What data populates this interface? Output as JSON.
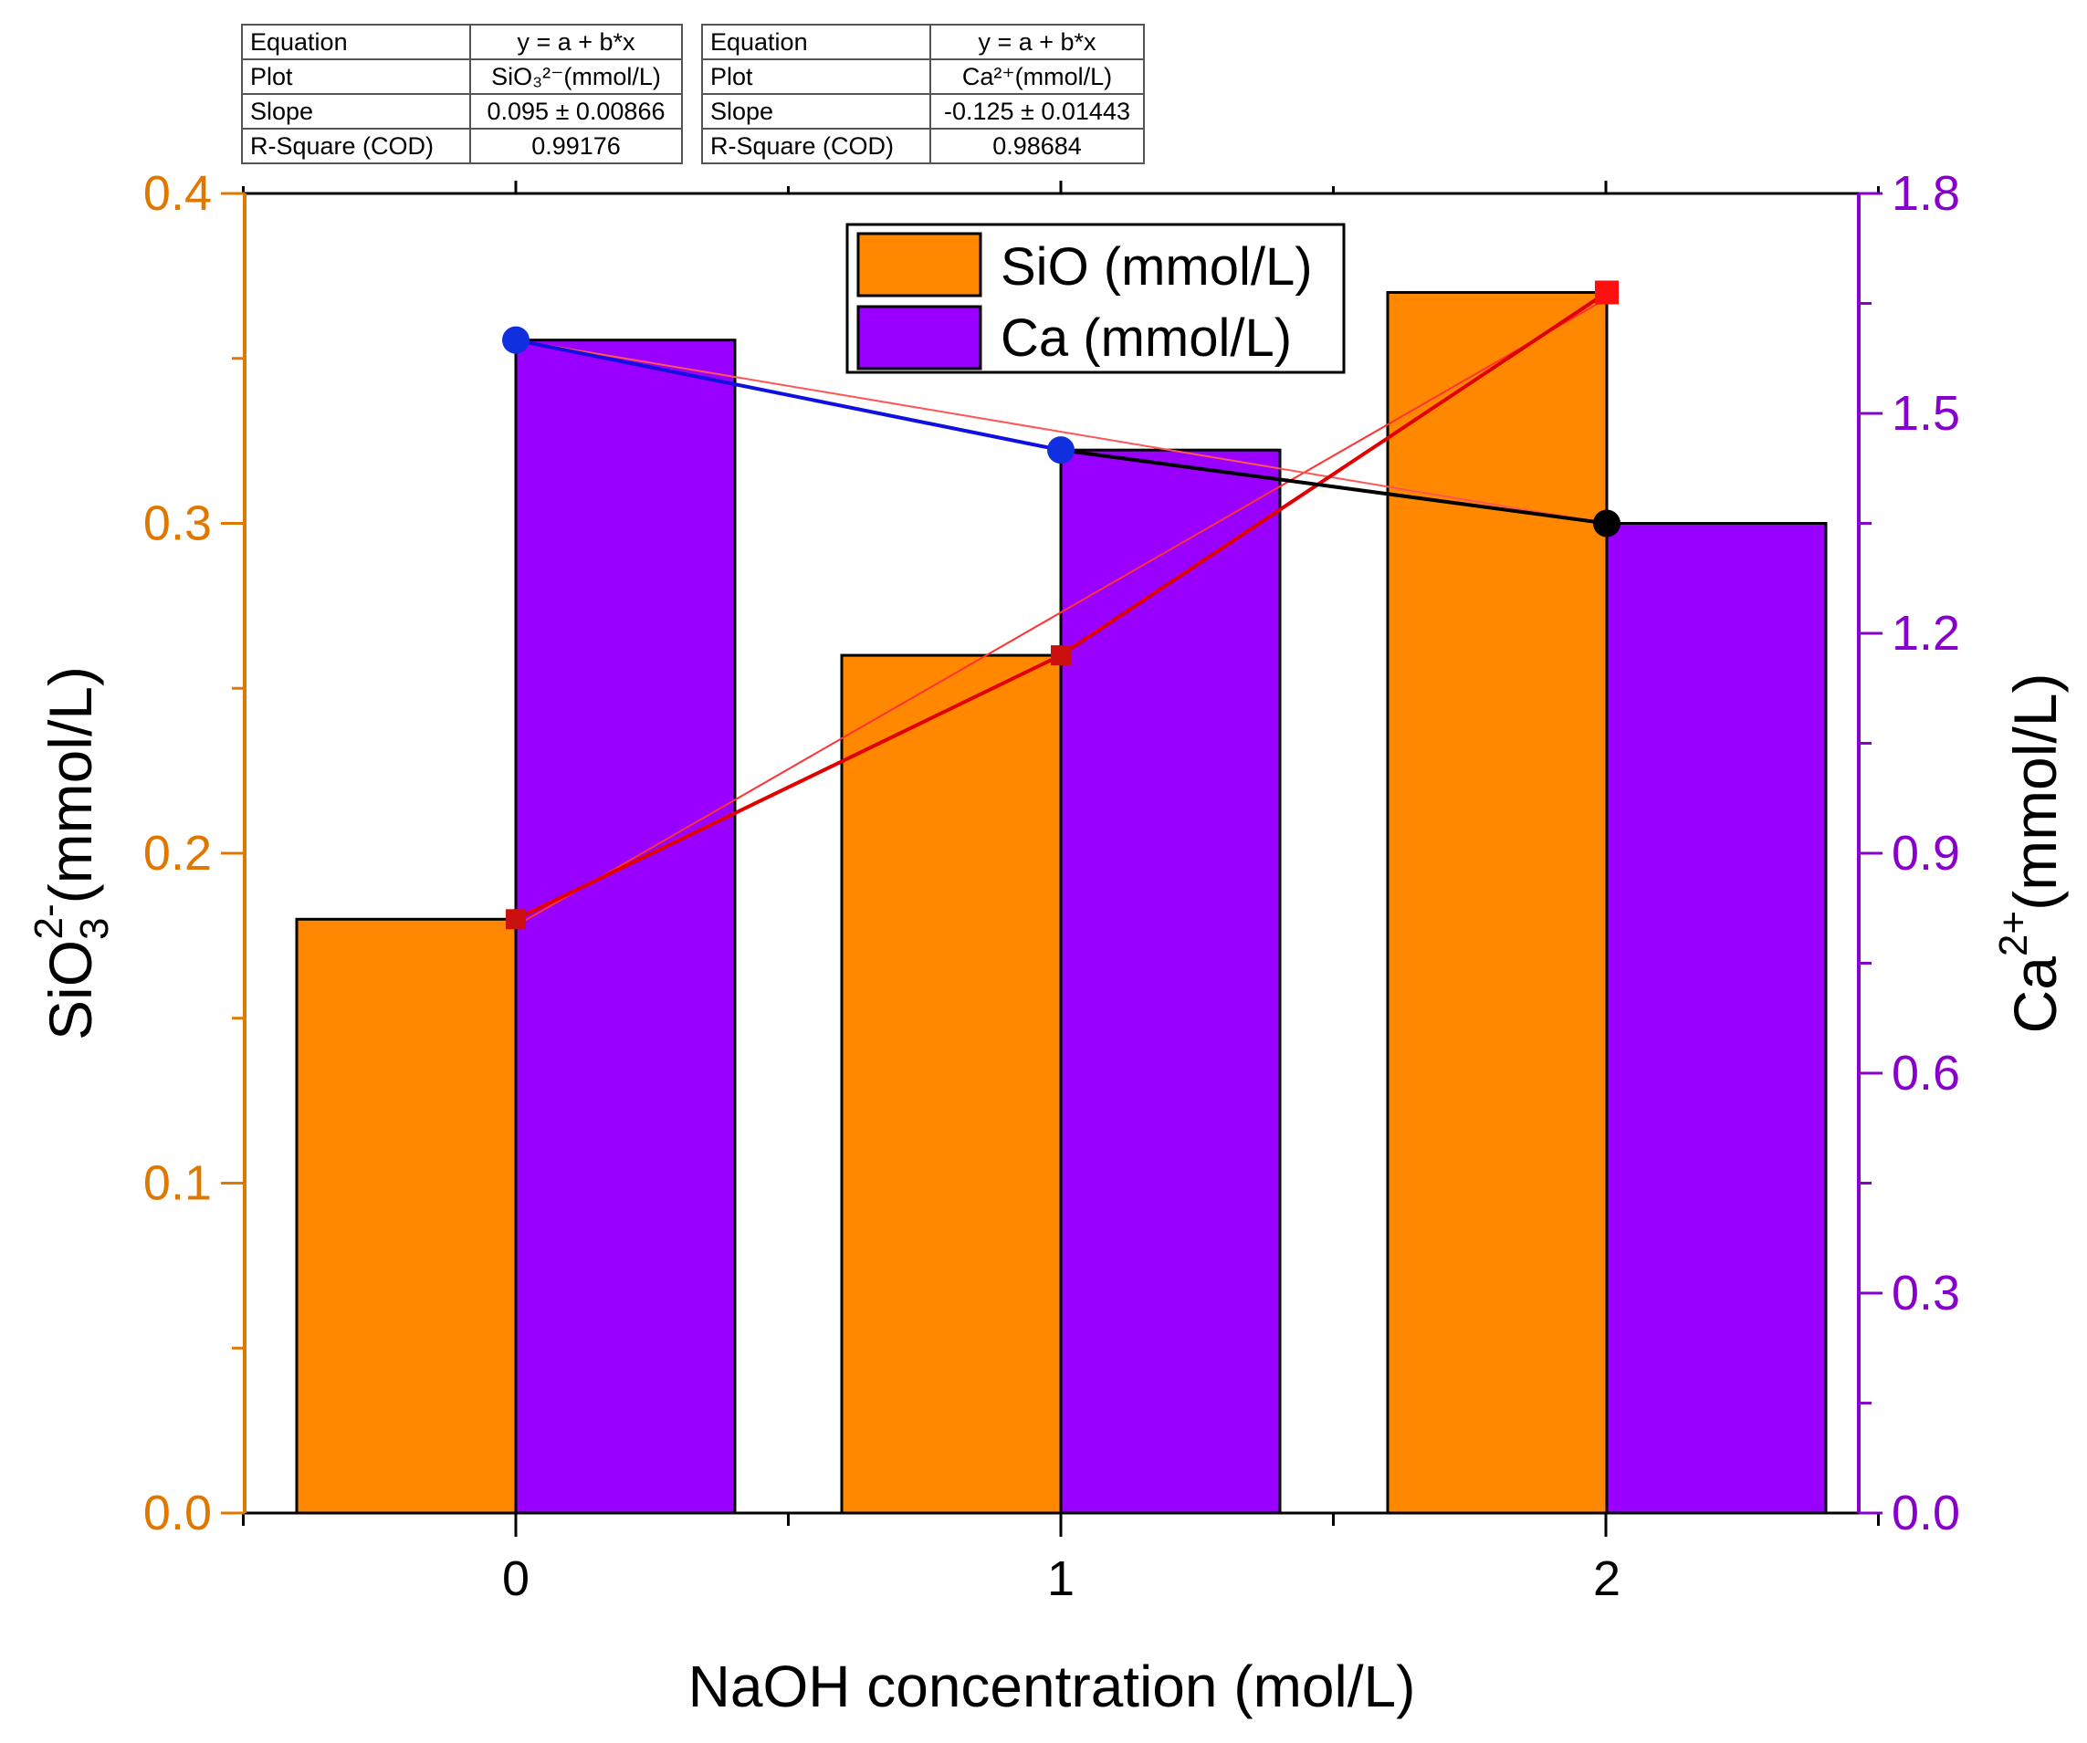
{
  "fit_tables": [
    {
      "rows": [
        {
          "key": "Equation",
          "value": "y = a + b*x"
        },
        {
          "key": "Plot",
          "value": "SiO₃²⁻(mmol/L)"
        },
        {
          "key": "Slope",
          "value": "0.095 ± 0.00866"
        },
        {
          "key": "R-Square (COD)",
          "value": "0.99176"
        }
      ]
    },
    {
      "rows": [
        {
          "key": "Equation",
          "value": "y = a + b*x"
        },
        {
          "key": "Plot",
          "value": "Ca²⁺(mmol/L)"
        },
        {
          "key": "Slope",
          "value": "-0.125 ± 0.01443"
        },
        {
          "key": "R-Square (COD)",
          "value": "0.98684"
        }
      ]
    }
  ],
  "chart_data": {
    "type": "bar",
    "categories": [
      "0",
      "1",
      "2"
    ],
    "xlabel": "NaOH concentration (mol/L)",
    "ylabel_left": {
      "base": "SiO",
      "sub": "3",
      "sup": "2-",
      "unit": "(mmol/L)"
    },
    "ylabel_right": {
      "base": "Ca",
      "sup": "2+",
      "unit": "(mmol/L)"
    },
    "ylim_left": [
      0,
      0.4
    ],
    "ylim_right": [
      0,
      1.8
    ],
    "yticks_left": [
      "0.0",
      "0.1",
      "0.2",
      "0.3",
      "0.4"
    ],
    "yticks_right": [
      "0.0",
      "0.3",
      "0.6",
      "0.9",
      "1.2",
      "1.5",
      "1.8"
    ],
    "legend_position": "top-center",
    "series": [
      {
        "name": "SiO (mmol/L)",
        "axis": "left",
        "color": "#FF8800",
        "values": [
          0.18,
          0.26,
          0.37
        ]
      },
      {
        "name": "Ca (mmol/L)",
        "axis": "right",
        "color": "#9900FF",
        "values": [
          1.6,
          1.45,
          1.35
        ]
      }
    ],
    "fit_lines": [
      {
        "series": "SiO (mmol/L)",
        "slope": 0.095,
        "intercept": 0.178,
        "color": "#FF3333"
      },
      {
        "series": "Ca (mmol/L)",
        "slope": -0.125,
        "intercept": 1.6,
        "color": "#FF5555"
      }
    ],
    "colors": {
      "left_axis": "#E07800",
      "right_axis": "#8800CC",
      "sio_line": "#E00000",
      "ca_line": "#1010E0"
    }
  }
}
